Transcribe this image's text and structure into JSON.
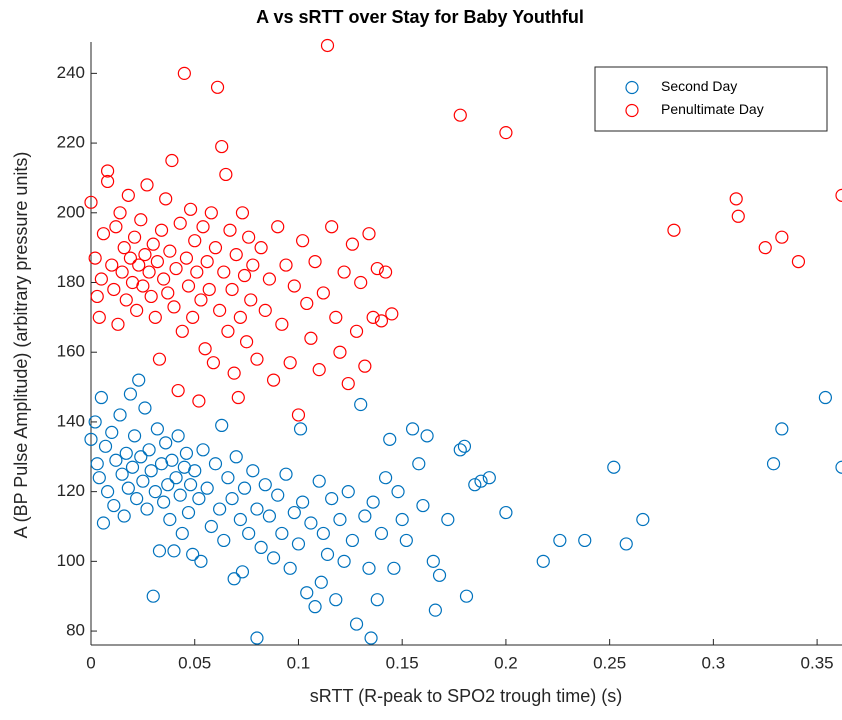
{
  "chart_data": {
    "type": "scatter",
    "title": "A vs sRTT over Stay for Baby Youthful",
    "x_label": "sRTT (R-peak to SPO2 trough time) (s)",
    "y_label": "A (BP Pulse Amplitude) (arbitrary pressure units)",
    "xlim": [
      0,
      0.362
    ],
    "ylim": [
      76,
      249
    ],
    "xticks": [
      0,
      0.05,
      0.1,
      0.15,
      0.2,
      0.25,
      0.3,
      0.35
    ],
    "yticks": [
      80,
      100,
      120,
      140,
      160,
      180,
      200,
      220,
      240
    ],
    "legend": "upper right",
    "series": [
      {
        "name": "Second Day",
        "color": "#0072bd",
        "x": [
          0.0,
          0.002,
          0.003,
          0.004,
          0.005,
          0.006,
          0.007,
          0.008,
          0.01,
          0.011,
          0.012,
          0.014,
          0.015,
          0.016,
          0.017,
          0.018,
          0.019,
          0.02,
          0.021,
          0.022,
          0.023,
          0.024,
          0.025,
          0.026,
          0.027,
          0.028,
          0.029,
          0.03,
          0.031,
          0.032,
          0.033,
          0.034,
          0.035,
          0.036,
          0.037,
          0.038,
          0.039,
          0.04,
          0.041,
          0.042,
          0.043,
          0.044,
          0.045,
          0.046,
          0.047,
          0.048,
          0.049,
          0.05,
          0.052,
          0.053,
          0.054,
          0.056,
          0.058,
          0.06,
          0.062,
          0.063,
          0.064,
          0.066,
          0.068,
          0.069,
          0.07,
          0.072,
          0.073,
          0.074,
          0.076,
          0.078,
          0.08,
          0.08,
          0.082,
          0.084,
          0.086,
          0.088,
          0.09,
          0.092,
          0.094,
          0.096,
          0.098,
          0.1,
          0.101,
          0.102,
          0.104,
          0.106,
          0.108,
          0.11,
          0.111,
          0.112,
          0.114,
          0.116,
          0.118,
          0.12,
          0.122,
          0.124,
          0.126,
          0.128,
          0.13,
          0.132,
          0.134,
          0.135,
          0.136,
          0.138,
          0.14,
          0.142,
          0.144,
          0.146,
          0.148,
          0.15,
          0.152,
          0.155,
          0.158,
          0.16,
          0.162,
          0.165,
          0.166,
          0.168,
          0.172,
          0.178,
          0.18,
          0.181,
          0.185,
          0.188,
          0.192,
          0.2,
          0.218,
          0.226,
          0.238,
          0.252,
          0.258,
          0.266,
          0.329,
          0.333,
          0.354,
          0.362
        ],
        "values": [
          135,
          140,
          128,
          124,
          147,
          111,
          133,
          120,
          137,
          116,
          129,
          142,
          125,
          113,
          131,
          121,
          148,
          127,
          136,
          118,
          152,
          130,
          123,
          144,
          115,
          132,
          126,
          90,
          120,
          138,
          103,
          128,
          117,
          134,
          122,
          112,
          129,
          103,
          124,
          136,
          119,
          108,
          127,
          131,
          114,
          122,
          102,
          126,
          118,
          100,
          132,
          121,
          110,
          128,
          115,
          139,
          106,
          124,
          118,
          95,
          130,
          112,
          97,
          121,
          108,
          126,
          78,
          115,
          104,
          122,
          113,
          101,
          119,
          108,
          125,
          98,
          114,
          105,
          138,
          117,
          91,
          111,
          87,
          123,
          94,
          108,
          102,
          118,
          89,
          112,
          100,
          120,
          106,
          82,
          145,
          113,
          98,
          78,
          117,
          89,
          108,
          124,
          135,
          98,
          120,
          112,
          106,
          138,
          128,
          116,
          136,
          100,
          86,
          96,
          112,
          132,
          133,
          90,
          122,
          123,
          124,
          114,
          100,
          106,
          106,
          127,
          105,
          112,
          128,
          138,
          147,
          127
        ]
      },
      {
        "name": "Penultimate Day",
        "color": "#ff0000",
        "x": [
          0.0,
          0.002,
          0.003,
          0.004,
          0.005,
          0.006,
          0.008,
          0.008,
          0.01,
          0.011,
          0.012,
          0.013,
          0.014,
          0.015,
          0.016,
          0.017,
          0.018,
          0.019,
          0.02,
          0.021,
          0.022,
          0.023,
          0.024,
          0.025,
          0.026,
          0.027,
          0.028,
          0.029,
          0.03,
          0.031,
          0.032,
          0.033,
          0.034,
          0.035,
          0.036,
          0.037,
          0.038,
          0.039,
          0.04,
          0.041,
          0.042,
          0.043,
          0.044,
          0.045,
          0.046,
          0.047,
          0.048,
          0.049,
          0.05,
          0.051,
          0.052,
          0.053,
          0.054,
          0.055,
          0.056,
          0.057,
          0.058,
          0.059,
          0.06,
          0.061,
          0.062,
          0.063,
          0.064,
          0.065,
          0.066,
          0.067,
          0.068,
          0.069,
          0.07,
          0.071,
          0.072,
          0.073,
          0.074,
          0.075,
          0.076,
          0.077,
          0.078,
          0.08,
          0.082,
          0.084,
          0.086,
          0.088,
          0.09,
          0.092,
          0.094,
          0.096,
          0.098,
          0.1,
          0.102,
          0.104,
          0.106,
          0.108,
          0.11,
          0.112,
          0.114,
          0.116,
          0.118,
          0.12,
          0.122,
          0.124,
          0.126,
          0.128,
          0.13,
          0.132,
          0.134,
          0.136,
          0.138,
          0.14,
          0.142,
          0.145,
          0.178,
          0.2,
          0.281,
          0.311,
          0.312,
          0.325,
          0.333,
          0.341,
          0.362
        ],
        "values": [
          203,
          187,
          176,
          170,
          181,
          194,
          212,
          209,
          185,
          178,
          196,
          168,
          200,
          183,
          190,
          175,
          205,
          187,
          180,
          193,
          172,
          185,
          198,
          179,
          188,
          208,
          183,
          176,
          191,
          170,
          186,
          158,
          195,
          181,
          204,
          177,
          189,
          215,
          173,
          184,
          149,
          197,
          166,
          240,
          187,
          179,
          201,
          170,
          192,
          183,
          146,
          175,
          196,
          161,
          186,
          178,
          200,
          157,
          190,
          236,
          172,
          219,
          183,
          211,
          166,
          195,
          178,
          154,
          188,
          147,
          170,
          200,
          182,
          163,
          193,
          175,
          185,
          158,
          190,
          172,
          181,
          152,
          196,
          168,
          185,
          157,
          179,
          142,
          192,
          174,
          164,
          186,
          155,
          177,
          248,
          196,
          170,
          160,
          183,
          151,
          191,
          166,
          180,
          156,
          194,
          170,
          184,
          169,
          183,
          171,
          228,
          223,
          195,
          204,
          199,
          190,
          193,
          186,
          205
        ]
      }
    ]
  }
}
